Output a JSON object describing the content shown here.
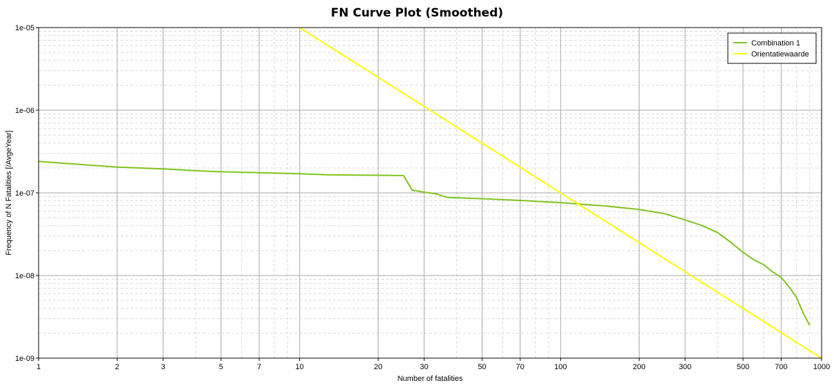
{
  "chart_data": {
    "type": "line",
    "title": "FN Curve Plot (Smoothed)",
    "xlabel": "Number of fatalities",
    "ylabel": "Frequency of N Fatalities [/AvgeYear]",
    "x_scale": "log",
    "y_scale": "log",
    "xlim": [
      1,
      1000
    ],
    "ylim": [
      1e-09,
      1e-05
    ],
    "grid": true,
    "legend_position": "top-right",
    "x_tick_labels": [
      "1",
      "2",
      "3",
      "5",
      "7",
      "10",
      "20",
      "30",
      "50",
      "70",
      "100",
      "200",
      "300",
      "500",
      "700",
      "1000"
    ],
    "y_tick_labels": [
      "1e-05",
      "1e-06",
      "1e-07",
      "1e-08",
      "1e-09"
    ],
    "series": [
      {
        "name": "Combination 1",
        "color": "#7fc31c",
        "points": [
          [
            1,
            2.4e-07
          ],
          [
            2,
            2.05e-07
          ],
          [
            3,
            1.95e-07
          ],
          [
            4,
            1.85e-07
          ],
          [
            5,
            1.8e-07
          ],
          [
            7,
            1.75e-07
          ],
          [
            10,
            1.7e-07
          ],
          [
            13,
            1.65e-07
          ],
          [
            20,
            1.63e-07
          ],
          [
            25,
            1.62e-07
          ],
          [
            27,
            1.08e-07
          ],
          [
            30,
            1.02e-07
          ],
          [
            33,
            9.8e-08
          ],
          [
            37,
            8.8e-08
          ],
          [
            50,
            8.5e-08
          ],
          [
            70,
            8.1e-08
          ],
          [
            100,
            7.6e-08
          ],
          [
            150,
            6.9e-08
          ],
          [
            200,
            6.3e-08
          ],
          [
            250,
            5.6e-08
          ],
          [
            300,
            4.7e-08
          ],
          [
            350,
            4e-08
          ],
          [
            400,
            3.3e-08
          ],
          [
            450,
            2.5e-08
          ],
          [
            500,
            1.9e-08
          ],
          [
            550,
            1.55e-08
          ],
          [
            600,
            1.35e-08
          ],
          [
            650,
            1.1e-08
          ],
          [
            700,
            9.5e-09
          ],
          [
            750,
            7.3e-09
          ],
          [
            800,
            5.5e-09
          ],
          [
            850,
            3.5e-09
          ],
          [
            900,
            2.5e-09
          ]
        ]
      },
      {
        "name": "Orientatiewaarde",
        "color": "#ffff00",
        "points": [
          [
            10,
            1e-05
          ],
          [
            1000,
            1e-09
          ]
        ]
      }
    ]
  }
}
